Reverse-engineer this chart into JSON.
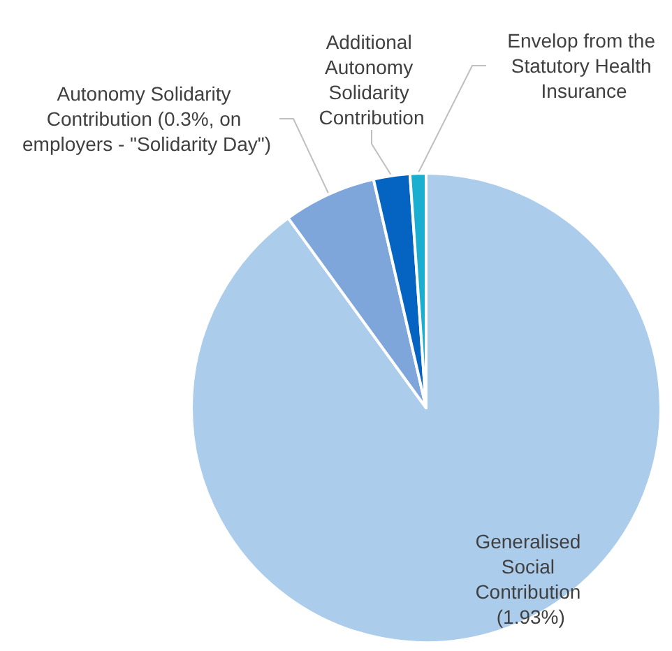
{
  "chart_data": {
    "type": "pie",
    "categories": [
      "Generalised Social Contribution (1.93%)",
      "Autonomy Solidarity Contribution (0.3%, on employers - \"Solidarity Day\")",
      "Additional Autonomy Solidarity Contribution",
      "Envelop from the Statutory Health Insurance"
    ],
    "values": [
      90,
      6.4,
      2.5,
      1.1
    ],
    "colors": [
      "#acccec",
      "#7ea6da",
      "#0563c1",
      "#1aafd0"
    ],
    "legend": false
  }
}
